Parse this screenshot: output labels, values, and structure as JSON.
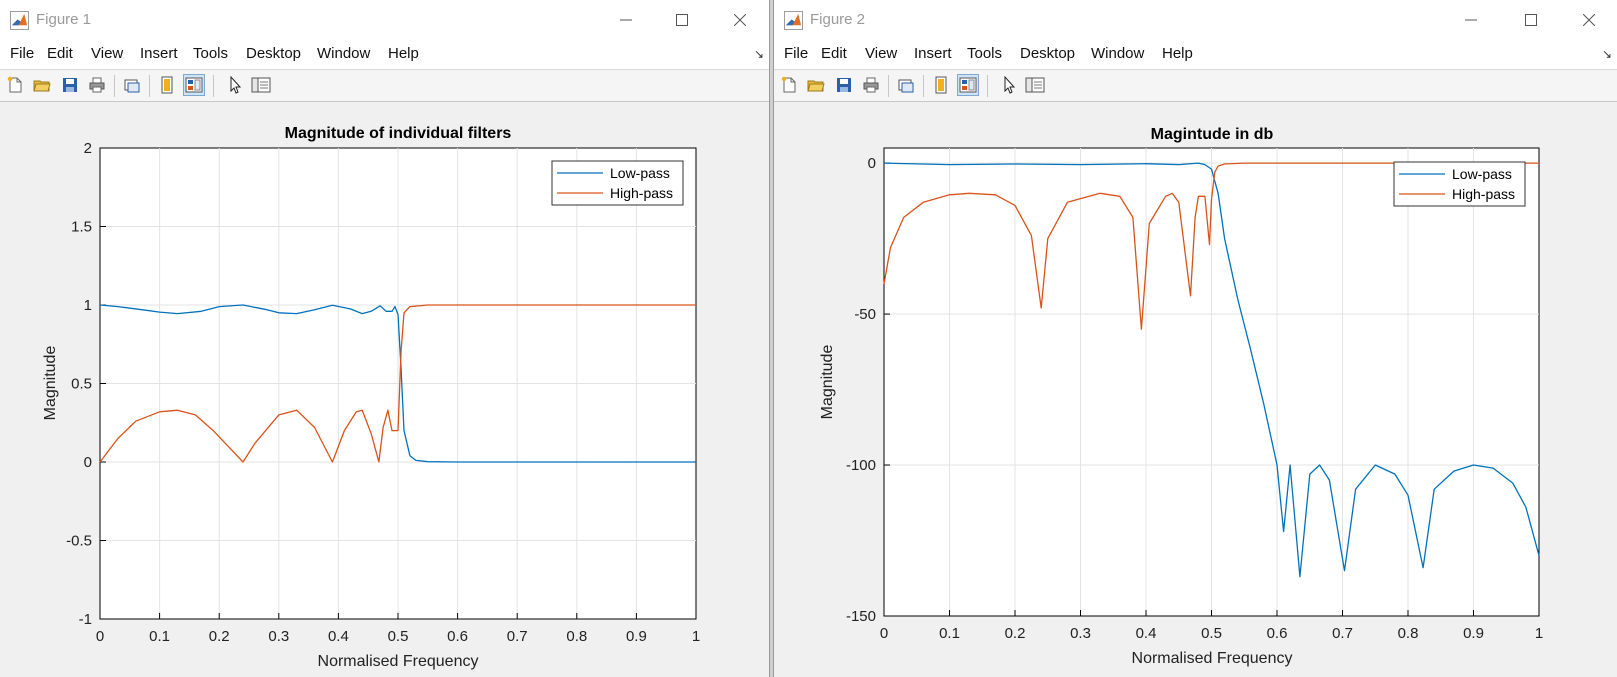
{
  "figures": [
    {
      "title": "Figure 1",
      "menu": [
        "File",
        "Edit",
        "View",
        "Insert",
        "Tools",
        "Desktop",
        "Window",
        "Help"
      ],
      "axes": {
        "title": "Magnitude of individual filters",
        "xlabel": "Normalised Frequency",
        "ylabel": "Magnitude",
        "xticks": [
          "0",
          "0.1",
          "0.2",
          "0.3",
          "0.4",
          "0.5",
          "0.6",
          "0.7",
          "0.8",
          "0.9",
          "1"
        ],
        "yticks": [
          "-1",
          "-0.5",
          "0",
          "0.5",
          "1",
          "1.5",
          "2"
        ]
      },
      "legend": [
        "Low-pass",
        "High-pass"
      ]
    },
    {
      "title": "Figure 2",
      "menu": [
        "File",
        "Edit",
        "View",
        "Insert",
        "Tools",
        "Desktop",
        "Window",
        "Help"
      ],
      "axes": {
        "title": "Magintude in db",
        "xlabel": "Normalised Frequency",
        "ylabel": "Magnitude",
        "xticks": [
          "0",
          "0.1",
          "0.2",
          "0.3",
          "0.4",
          "0.5",
          "0.6",
          "0.7",
          "0.8",
          "0.9",
          "1"
        ],
        "yticks": [
          "-150",
          "-100",
          "-50",
          "0"
        ]
      },
      "legend": [
        "Low-pass",
        "High-pass"
      ]
    }
  ],
  "toolbar_icons": [
    "new-figure-icon",
    "open-file-icon",
    "save-icon",
    "print-icon",
    "link-plot-icon",
    "hide-plot-tools-icon",
    "show-plot-tools-icon",
    "edit-plot-icon",
    "property-inspector-icon"
  ],
  "colors": {
    "low_pass": "#0072bd",
    "high_pass": "#d95319",
    "grid": "#e3e3e3",
    "axes_bg": "#ffffff",
    "window_bg": "#f0f0f0"
  },
  "chart_data": [
    {
      "type": "line",
      "title": "Magnitude of individual filters",
      "xlabel": "Normalised Frequency",
      "ylabel": "Magnitude",
      "xlim": [
        0,
        1
      ],
      "ylim": [
        -1,
        2
      ],
      "grid": true,
      "legend_position": "top-right",
      "series": [
        {
          "name": "Low-pass",
          "x": [
            0,
            0.03,
            0.07,
            0.1,
            0.13,
            0.17,
            0.2,
            0.24,
            0.28,
            0.3,
            0.33,
            0.36,
            0.39,
            0.42,
            0.44,
            0.455,
            0.47,
            0.48,
            0.49,
            0.495,
            0.5,
            0.505,
            0.51,
            0.52,
            0.53,
            0.55,
            0.6,
            0.7,
            0.8,
            0.9,
            1
          ],
          "y": [
            1,
            0.99,
            0.97,
            0.955,
            0.945,
            0.96,
            0.99,
            1,
            0.97,
            0.95,
            0.945,
            0.97,
            0.998,
            0.975,
            0.945,
            0.96,
            0.995,
            0.96,
            0.96,
            0.99,
            0.94,
            0.6,
            0.2,
            0.04,
            0.01,
            0.002,
            0,
            0,
            0,
            0,
            0
          ]
        },
        {
          "name": "High-pass",
          "x": [
            0,
            0.03,
            0.06,
            0.1,
            0.13,
            0.16,
            0.19,
            0.22,
            0.24,
            0.26,
            0.3,
            0.33,
            0.36,
            0.39,
            0.41,
            0.43,
            0.44,
            0.455,
            0.468,
            0.475,
            0.483,
            0.49,
            0.5,
            0.505,
            0.51,
            0.52,
            0.55,
            0.6,
            0.7,
            0.8,
            0.9,
            1
          ],
          "y": [
            0,
            0.15,
            0.26,
            0.32,
            0.33,
            0.3,
            0.2,
            0.08,
            0,
            0.12,
            0.3,
            0.33,
            0.22,
            0,
            0.2,
            0.32,
            0.33,
            0.18,
            0,
            0.22,
            0.33,
            0.2,
            0.2,
            0.7,
            0.95,
            0.99,
            1,
            1,
            1,
            1,
            1,
            1
          ]
        }
      ]
    },
    {
      "type": "line",
      "title": "Magintude in db",
      "xlabel": "Normalised Frequency",
      "ylabel": "Magnitude",
      "xlim": [
        0,
        1
      ],
      "ylim": [
        -150,
        5
      ],
      "grid": true,
      "legend_position": "top-right",
      "series": [
        {
          "name": "Low-pass",
          "x": [
            0,
            0.1,
            0.2,
            0.3,
            0.4,
            0.45,
            0.48,
            0.49,
            0.5,
            0.51,
            0.52,
            0.54,
            0.56,
            0.58,
            0.6,
            0.61,
            0.62,
            0.635,
            0.65,
            0.665,
            0.68,
            0.703,
            0.72,
            0.75,
            0.78,
            0.8,
            0.823,
            0.84,
            0.87,
            0.9,
            0.93,
            0.96,
            0.98,
            1
          ],
          "y": [
            0,
            -0.5,
            -0.3,
            -0.5,
            -0.2,
            -0.5,
            0,
            -0.5,
            -2,
            -10,
            -25,
            -45,
            -62,
            -80,
            -100,
            -122,
            -100,
            -137,
            -103,
            -100,
            -105,
            -135,
            -108,
            -100,
            -103,
            -110,
            -134,
            -108,
            -102,
            -100,
            -101,
            -106,
            -114,
            -130
          ]
        },
        {
          "name": "High-pass",
          "x": [
            0,
            0.01,
            0.03,
            0.06,
            0.1,
            0.13,
            0.17,
            0.2,
            0.225,
            0.24,
            0.25,
            0.28,
            0.33,
            0.36,
            0.38,
            0.393,
            0.405,
            0.43,
            0.44,
            0.45,
            0.468,
            0.475,
            0.48,
            0.49,
            0.497,
            0.5,
            0.505,
            0.51,
            0.52,
            0.55,
            0.6,
            0.7,
            0.8,
            0.9,
            1
          ],
          "y": [
            -40,
            -28,
            -18,
            -13,
            -10.5,
            -10,
            -10.5,
            -14,
            -24,
            -48,
            -25,
            -13,
            -10,
            -11,
            -18,
            -55,
            -20,
            -11,
            -10,
            -13,
            -44,
            -18,
            -11,
            -11,
            -27,
            -12,
            -3,
            -1,
            -0.3,
            0,
            0,
            0,
            0,
            0,
            0
          ]
        }
      ]
    }
  ]
}
